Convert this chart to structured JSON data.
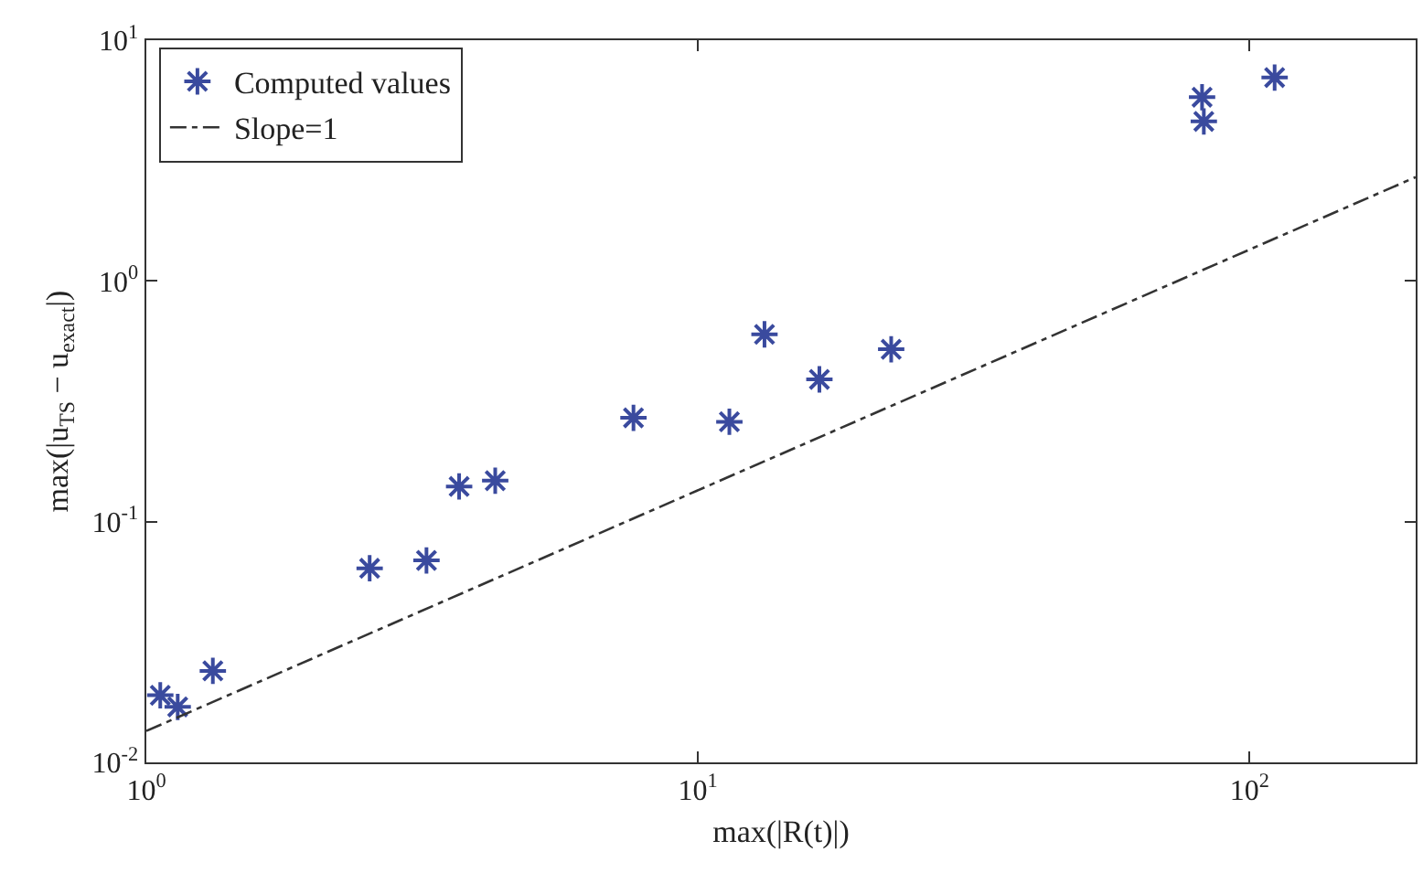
{
  "chart_data": {
    "type": "scatter",
    "xlabel": "max(|R(t)|)",
    "ylabel": "max(|u$_{TS}$ − u$_{exact}$|)",
    "log": "xy",
    "grid": false,
    "legend": "top left",
    "marker": "cross",
    "xlim": [
      1,
      200
    ],
    "ylim": [
      0.01,
      10
    ],
    "xticks": [
      {
        "value": 1,
        "label": "10$^{0}$"
      },
      {
        "value": 10,
        "label": "10$^{1}$"
      },
      {
        "value": 100,
        "label": "10$^{2}$"
      }
    ],
    "yticks": [
      {
        "value": 0.01,
        "label": "10$^{-2}$"
      },
      {
        "value": 0.1,
        "label": "10$^{-1}$"
      },
      {
        "value": 1,
        "label": "10$^{0}$"
      },
      {
        "value": 10,
        "label": "10$^{1}$"
      }
    ],
    "series": [
      {
        "name": "Computed values",
        "color": "#3a4a9e",
        "x": [
          1.06,
          1.14,
          1.32,
          2.54,
          3.22,
          3.69,
          4.29,
          7.64,
          11.4,
          13.2,
          16.6,
          22.4,
          82,
          82.6,
          111
        ],
        "values": [
          0.019,
          0.017,
          0.024,
          0.064,
          0.069,
          0.14,
          0.148,
          0.27,
          0.26,
          0.6,
          0.39,
          0.52,
          5.8,
          4.6,
          7.0
        ]
      },
      {
        "name": "Slope=1",
        "type": "line",
        "color": "#333333",
        "line_style": "dashed",
        "marker": "none",
        "x": [
          1,
          200
        ],
        "values": [
          0.0135,
          2.7
        ]
      }
    ]
  }
}
